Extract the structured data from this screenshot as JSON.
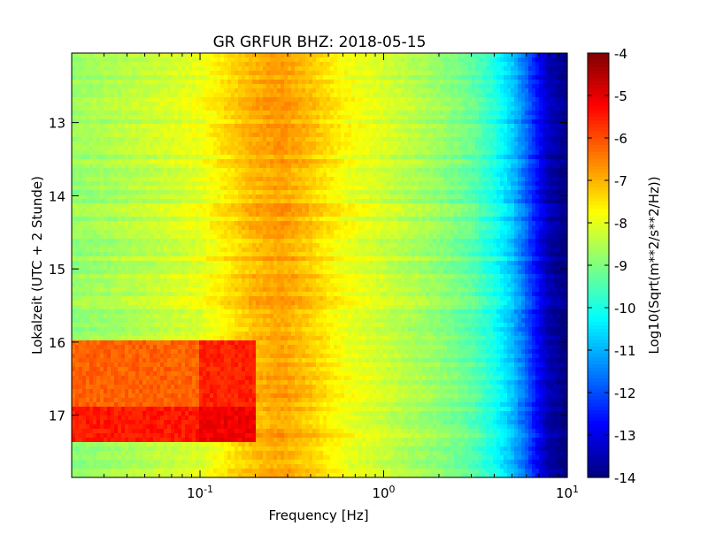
{
  "chart_data": {
    "type": "heatmap",
    "title": "GR GRFUR BHZ: 2018-05-15",
    "xlabel": "Frequency [Hz]",
    "ylabel": "Lokalzeit (UTC + 2 Stunde)",
    "xscale": "log",
    "xlim": [
      0.02,
      10
    ],
    "xticks": [
      {
        "value": 0.1,
        "base": "10",
        "exp": "-1"
      },
      {
        "value": 1,
        "base": "10",
        "exp": "0"
      },
      {
        "value": 10,
        "base": "10",
        "exp": "1"
      }
    ],
    "ylim": [
      12.05,
      17.85
    ],
    "y_inverted": true,
    "yticks": [
      "13",
      "14",
      "15",
      "16",
      "17"
    ],
    "colorbar": {
      "label": "Log10(Sqrt(m**2/s**2/Hz))",
      "range": [
        -14,
        -4
      ],
      "colormap": "jet",
      "ticks": [
        "-4",
        "-5",
        "-6",
        "-7",
        "-8",
        "-9",
        "-10",
        "-11",
        "-12",
        "-13",
        "-14"
      ]
    },
    "spectrum_profile": [
      {
        "freq": 0.02,
        "value": -8.8
      },
      {
        "freq": 0.04,
        "value": -8.5
      },
      {
        "freq": 0.1,
        "value": -8.0
      },
      {
        "freq": 0.15,
        "value": -7.4
      },
      {
        "freq": 0.2,
        "value": -7.0
      },
      {
        "freq": 0.28,
        "value": -6.8
      },
      {
        "freq": 0.4,
        "value": -7.2
      },
      {
        "freq": 0.6,
        "value": -7.8
      },
      {
        "freq": 1.0,
        "value": -8.2
      },
      {
        "freq": 2.0,
        "value": -8.8
      },
      {
        "freq": 3.0,
        "value": -9.3
      },
      {
        "freq": 4.0,
        "value": -10.0
      },
      {
        "freq": 5.0,
        "value": -10.8
      },
      {
        "freq": 6.0,
        "value": -11.8
      },
      {
        "freq": 7.0,
        "value": -12.8
      },
      {
        "freq": 8.0,
        "value": -13.5
      },
      {
        "freq": 10.0,
        "value": -14.0
      }
    ],
    "event": {
      "time_range": [
        15.98,
        17.35
      ],
      "freq_range": [
        0.02,
        0.2
      ],
      "peak_value": -6.2
    }
  }
}
